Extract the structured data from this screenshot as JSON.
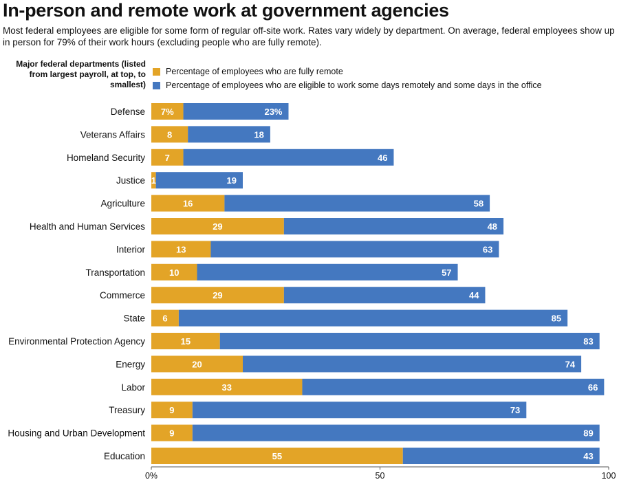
{
  "header": {
    "title": "In-person and remote work at government agencies",
    "subtitle": "Most federal employees are eligible for some form of regular off-site work. Rates vary widely by department. On average, federal employees show up in person for 79% of their work hours (excluding people who are fully remote)."
  },
  "legend": {
    "title": "Major federal departments (listed from largest payroll, at top, to smallest)",
    "items": [
      {
        "label": "Percentage of employees who are fully remote",
        "color": "#E3A427"
      },
      {
        "label": "Percentage of employees who are eligible to work some days remotely and some days in the office",
        "color": "#4478C0"
      }
    ]
  },
  "chart_data": {
    "type": "bar",
    "orientation": "horizontal",
    "stacked": true,
    "xlim": [
      0,
      100
    ],
    "x_ticks": [
      0,
      50,
      100
    ],
    "x_tick_labels": [
      "0%",
      "50",
      "100"
    ],
    "categories": [
      "Defense",
      "Veterans Affairs",
      "Homeland Security",
      "Justice",
      "Agriculture",
      "Health and Human Services",
      "Interior",
      "Transportation",
      "Commerce",
      "State",
      "Environmental Protection Agency",
      "Energy",
      "Labor",
      "Treasury",
      "Housing and Urban Development",
      "Education"
    ],
    "series": [
      {
        "name": "Percentage of employees who are fully remote",
        "color": "#E3A427",
        "values": [
          7,
          8,
          7,
          1,
          16,
          29,
          13,
          10,
          29,
          6,
          15,
          20,
          33,
          9,
          9,
          55
        ],
        "labels": [
          "7%",
          "8",
          "7",
          "1",
          "16",
          "29",
          "13",
          "10",
          "29",
          "6",
          "15",
          "20",
          "33",
          "9",
          "9",
          "55"
        ]
      },
      {
        "name": "Percentage of employees who are eligible to work some days remotely and some days in the office",
        "color": "#4478C0",
        "values": [
          23,
          18,
          46,
          19,
          58,
          48,
          63,
          57,
          44,
          85,
          83,
          74,
          66,
          73,
          89,
          43
        ],
        "labels": [
          "23%",
          "18",
          "46",
          "19",
          "58",
          "48",
          "63",
          "57",
          "44",
          "85",
          "83",
          "74",
          "66",
          "73",
          "89",
          "43"
        ]
      }
    ]
  }
}
